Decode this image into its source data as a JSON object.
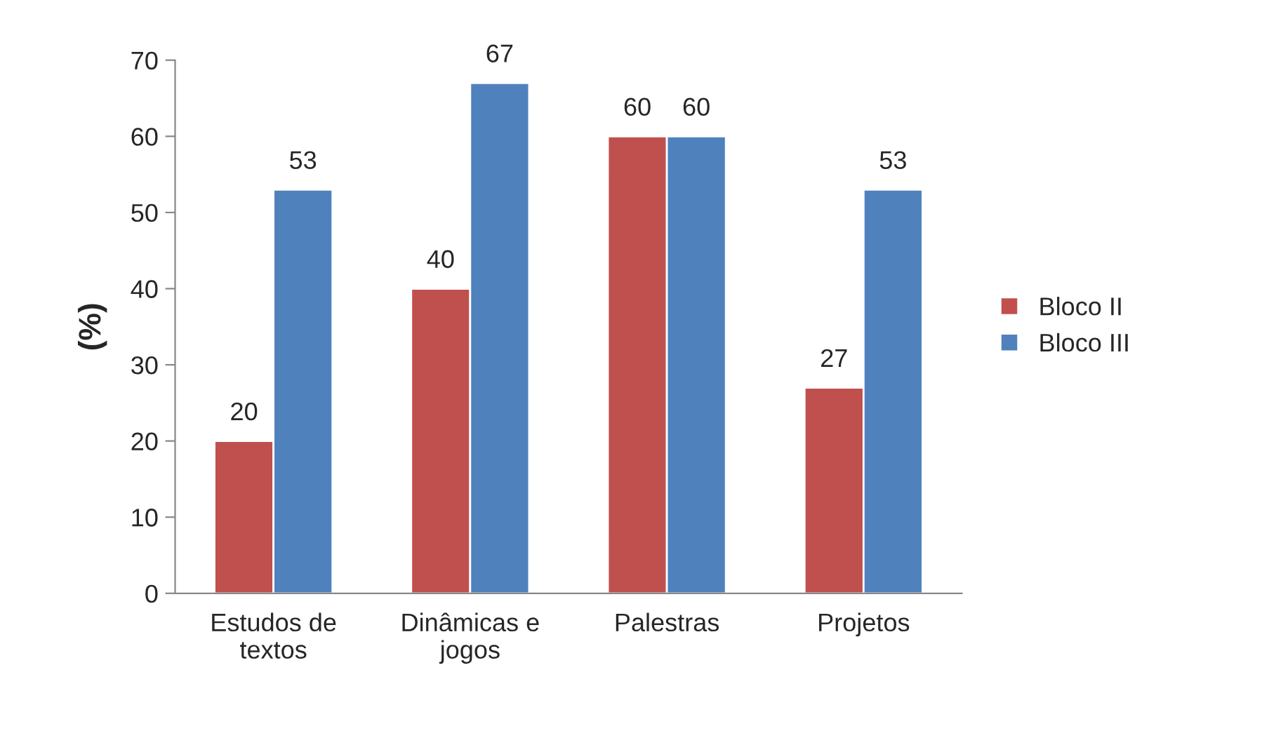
{
  "chart_data": {
    "type": "bar",
    "ylabel": "(%)",
    "categories": [
      "Estudos de\ntextos",
      "Dinâmicas e\njogos",
      "Palestras",
      "Projetos"
    ],
    "series": [
      {
        "name": "Bloco II",
        "color": "#c0504d",
        "values": [
          20,
          40,
          60,
          27
        ]
      },
      {
        "name": "Bloco III",
        "color": "#4f81bd",
        "values": [
          53,
          67,
          60,
          53
        ]
      }
    ],
    "ylim": [
      0,
      70
    ],
    "yticks": [
      0,
      10,
      20,
      30,
      40,
      50,
      60,
      70
    ],
    "grid": false,
    "legend": "right",
    "data_labels": true
  }
}
